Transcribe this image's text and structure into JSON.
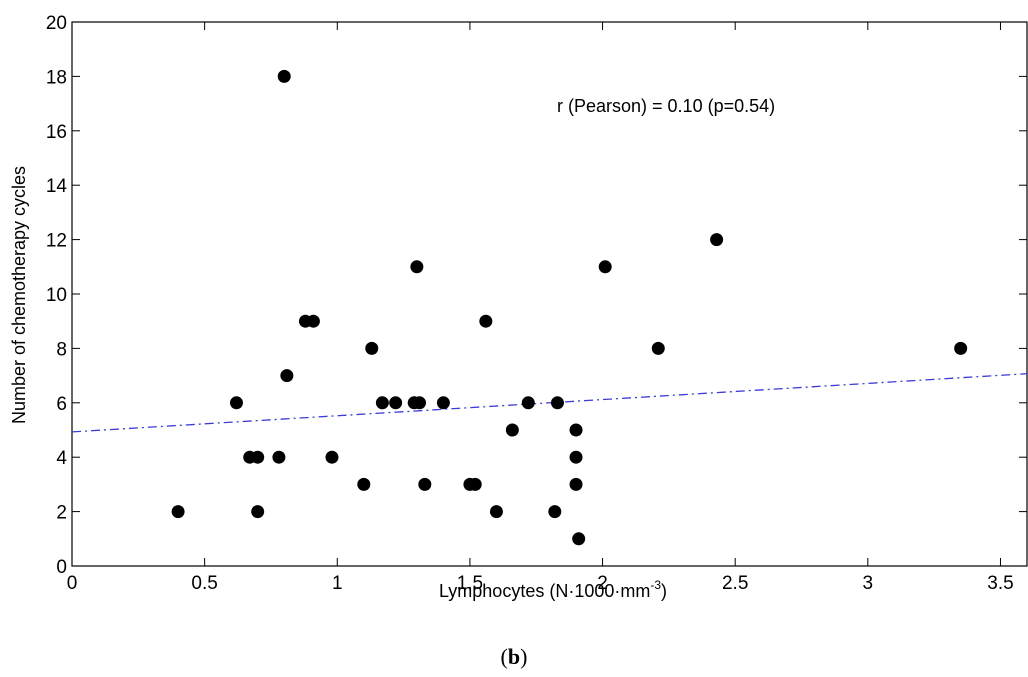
{
  "chart_data": {
    "type": "scatter",
    "title": "",
    "xlabel": "Lymphocytes (N·1000·mm",
    "xlabel_sup": "-3",
    "xlabel_end": ")",
    "ylabel": "Number of chemotherapy cycles",
    "xlim": [
      0,
      3.6
    ],
    "ylim": [
      0,
      20
    ],
    "xticks": [
      0,
      0.5,
      1,
      1.5,
      2,
      2.5,
      3,
      3.5
    ],
    "xtick_labels": [
      "0",
      "0.5",
      "1",
      "1.5",
      "2",
      "2.5",
      "3",
      "3.5"
    ],
    "yticks": [
      0,
      2,
      4,
      6,
      8,
      10,
      12,
      14,
      16,
      18,
      20
    ],
    "ytick_labels": [
      "0",
      "2",
      "4",
      "6",
      "8",
      "10",
      "12",
      "14",
      "16",
      "18",
      "20"
    ],
    "grid": false,
    "annotation": "r (Pearson) = 0.10 (p=0.54)",
    "marker_color": "#000000",
    "trend_color": "#3b3bd6",
    "points": [
      {
        "x": 0.4,
        "y": 2
      },
      {
        "x": 0.62,
        "y": 6
      },
      {
        "x": 0.67,
        "y": 4
      },
      {
        "x": 0.7,
        "y": 4
      },
      {
        "x": 0.7,
        "y": 2
      },
      {
        "x": 0.78,
        "y": 4
      },
      {
        "x": 0.8,
        "y": 18
      },
      {
        "x": 0.81,
        "y": 7
      },
      {
        "x": 0.88,
        "y": 9
      },
      {
        "x": 0.91,
        "y": 9
      },
      {
        "x": 0.98,
        "y": 4
      },
      {
        "x": 1.1,
        "y": 3
      },
      {
        "x": 1.13,
        "y": 8
      },
      {
        "x": 1.17,
        "y": 6
      },
      {
        "x": 1.22,
        "y": 6
      },
      {
        "x": 1.29,
        "y": 6
      },
      {
        "x": 1.3,
        "y": 11
      },
      {
        "x": 1.31,
        "y": 6
      },
      {
        "x": 1.33,
        "y": 3
      },
      {
        "x": 1.4,
        "y": 6
      },
      {
        "x": 1.5,
        "y": 3
      },
      {
        "x": 1.52,
        "y": 3
      },
      {
        "x": 1.56,
        "y": 9
      },
      {
        "x": 1.6,
        "y": 2
      },
      {
        "x": 1.66,
        "y": 5
      },
      {
        "x": 1.72,
        "y": 6
      },
      {
        "x": 1.82,
        "y": 2
      },
      {
        "x": 1.83,
        "y": 6
      },
      {
        "x": 1.9,
        "y": 5
      },
      {
        "x": 1.9,
        "y": 4
      },
      {
        "x": 1.9,
        "y": 3
      },
      {
        "x": 1.91,
        "y": 1
      },
      {
        "x": 2.01,
        "y": 11
      },
      {
        "x": 2.21,
        "y": 8
      },
      {
        "x": 2.43,
        "y": 12
      },
      {
        "x": 3.35,
        "y": 8
      }
    ],
    "trendline": {
      "x": [
        0,
        3.6
      ],
      "y": [
        4.93,
        7.07
      ]
    }
  },
  "panel_label": "b"
}
